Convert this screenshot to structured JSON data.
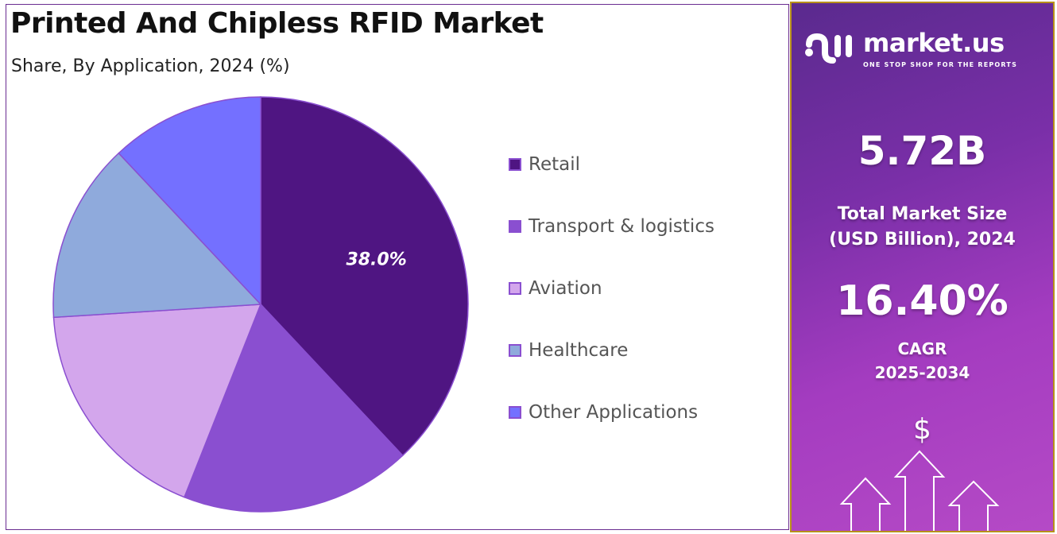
{
  "chart_data": {
    "type": "pie",
    "title": "Printed And Chipless RFID Market",
    "subtitle": "Share, By Application, 2024 (%)",
    "categories": [
      "Retail",
      "Transport & logistics",
      "Aviation",
      "Healthcare",
      "Other Applications"
    ],
    "values": [
      38.0,
      18.0,
      18.0,
      14.0,
      12.0
    ],
    "colors": [
      "#4f1582",
      "#8a4fd0",
      "#d3a6ec",
      "#8faadc",
      "#7470ff"
    ],
    "data_labels": [
      "38.0%",
      "",
      "",
      "",
      ""
    ],
    "legend_position": "right"
  },
  "sidebar": {
    "brand": "market.us",
    "tagline": "ONE STOP SHOP FOR THE REPORTS",
    "market_size": "5.72B",
    "market_size_label_1": "Total Market Size",
    "market_size_label_2": "(USD Billion), 2024",
    "cagr": "16.40%",
    "cagr_label": "CAGR",
    "cagr_period": "2025-2034",
    "dollar": "$"
  }
}
